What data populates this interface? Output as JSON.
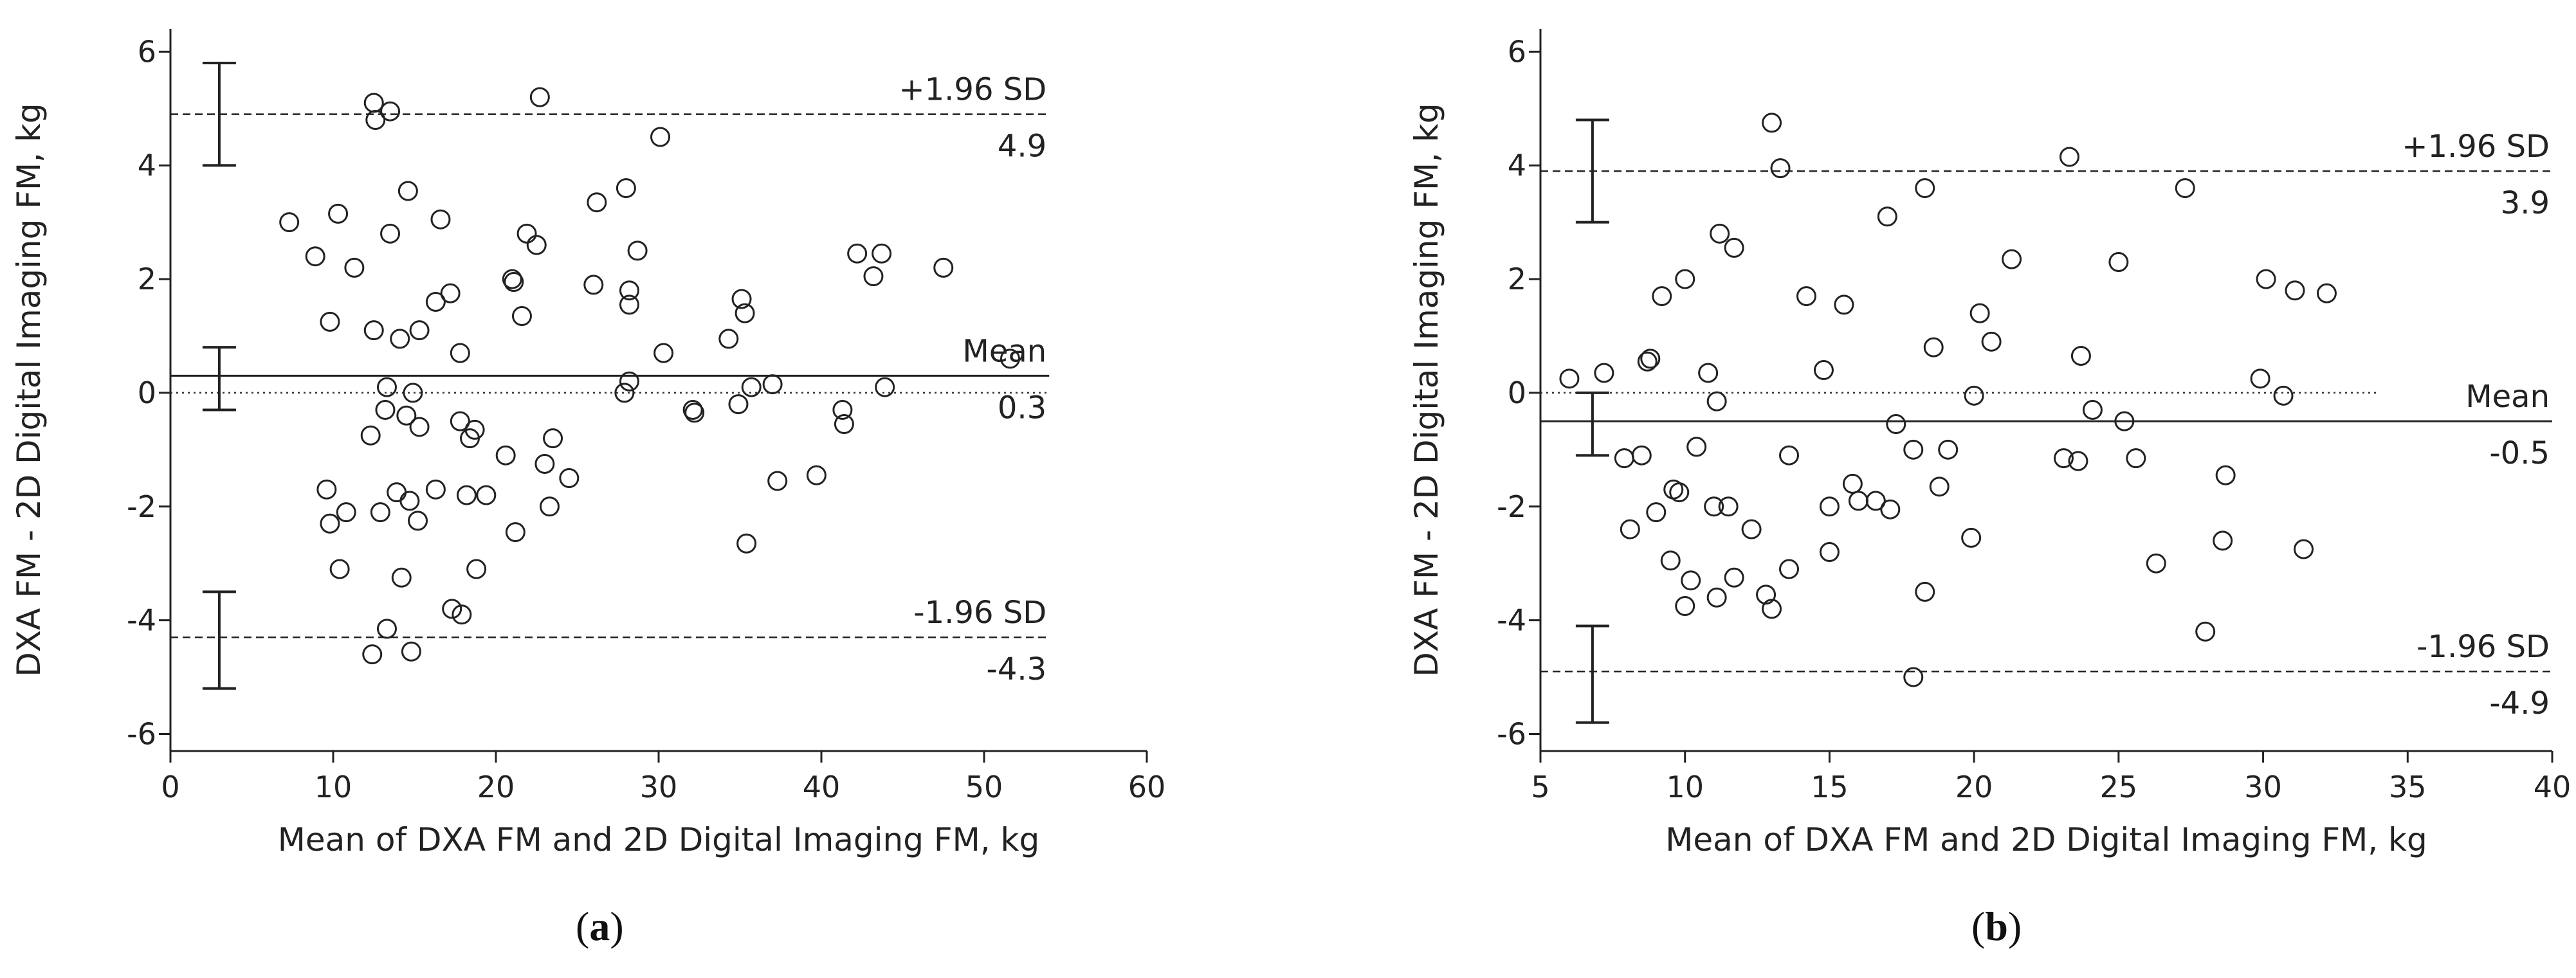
{
  "chart_data": [
    {
      "panel_label": "a",
      "type": "scatter",
      "chart_kind": "bland-altman",
      "title": "",
      "xlabel": "Mean of DXA FM and 2D Digital Imaging FM, kg",
      "ylabel": "DXA FM - 2D Digital Imaging FM, kg",
      "xlim": [
        0,
        60
      ],
      "ylim": [
        -6.3,
        6.4
      ],
      "xticks": [
        0,
        10,
        20,
        30,
        40,
        50,
        60
      ],
      "yticks": [
        -6,
        -4,
        -2,
        0,
        2,
        4,
        6
      ],
      "grid": false,
      "zero_line": 0,
      "mean": 0.3,
      "upper_loa": 4.9,
      "lower_loa": -4.3,
      "line_extent_x": [
        0,
        54
      ],
      "labels": {
        "upper": "+1.96 SD",
        "upper_value": "4.9",
        "mean": "Mean",
        "mean_value": "0.3",
        "lower": "-1.96 SD",
        "lower_value": "-4.3"
      },
      "error_bars": [
        {
          "x": 3,
          "low": 4.0,
          "high": 5.8
        },
        {
          "x": 3,
          "low": -0.3,
          "high": 0.8
        },
        {
          "x": 3,
          "low": -5.2,
          "high": -3.5
        }
      ],
      "points": [
        [
          7.3,
          3.0
        ],
        [
          8.9,
          2.4
        ],
        [
          9.8,
          1.25
        ],
        [
          9.6,
          -1.7
        ],
        [
          9.8,
          -2.3
        ],
        [
          10.3,
          3.15
        ],
        [
          10.4,
          -3.1
        ],
        [
          10.8,
          -2.1
        ],
        [
          11.3,
          2.2
        ],
        [
          12.3,
          -0.75
        ],
        [
          12.4,
          -4.6
        ],
        [
          12.5,
          1.1
        ],
        [
          12.5,
          5.1
        ],
        [
          12.6,
          4.8
        ],
        [
          12.9,
          -2.1
        ],
        [
          13.2,
          -0.3
        ],
        [
          13.3,
          -4.15
        ],
        [
          13.3,
          0.1
        ],
        [
          13.5,
          2.8
        ],
        [
          13.5,
          4.95
        ],
        [
          13.9,
          -1.75
        ],
        [
          14.1,
          0.95
        ],
        [
          14.2,
          -3.25
        ],
        [
          14.5,
          -0.4
        ],
        [
          14.6,
          3.55
        ],
        [
          14.7,
          -1.9
        ],
        [
          14.8,
          -4.55
        ],
        [
          14.9,
          0.0
        ],
        [
          15.2,
          -2.25
        ],
        [
          15.3,
          1.1
        ],
        [
          15.3,
          -0.6
        ],
        [
          16.3,
          1.6
        ],
        [
          16.3,
          -1.7
        ],
        [
          16.6,
          3.05
        ],
        [
          17.2,
          1.75
        ],
        [
          17.3,
          -3.8
        ],
        [
          17.8,
          0.7
        ],
        [
          17.8,
          -0.5
        ],
        [
          17.9,
          -3.9
        ],
        [
          18.2,
          -1.8
        ],
        [
          18.4,
          -0.8
        ],
        [
          18.7,
          -0.65
        ],
        [
          18.8,
          -3.1
        ],
        [
          19.4,
          -1.8
        ],
        [
          20.6,
          -1.1
        ],
        [
          21.0,
          2.0
        ],
        [
          21.1,
          1.95
        ],
        [
          21.2,
          -2.45
        ],
        [
          21.6,
          1.35
        ],
        [
          21.9,
          2.8
        ],
        [
          22.5,
          2.6
        ],
        [
          22.7,
          5.2
        ],
        [
          23.0,
          -1.25
        ],
        [
          23.3,
          -2.0
        ],
        [
          23.5,
          -0.8
        ],
        [
          24.5,
          -1.5
        ],
        [
          26.0,
          1.9
        ],
        [
          26.2,
          3.35
        ],
        [
          27.9,
          0.0
        ],
        [
          28.0,
          3.6
        ],
        [
          28.2,
          0.2
        ],
        [
          28.2,
          1.8
        ],
        [
          28.2,
          1.55
        ],
        [
          28.7,
          2.5
        ],
        [
          30.1,
          4.5
        ],
        [
          30.3,
          0.7
        ],
        [
          32.1,
          -0.3
        ],
        [
          32.2,
          -0.35
        ],
        [
          34.3,
          0.95
        ],
        [
          34.9,
          -0.2
        ],
        [
          35.1,
          1.65
        ],
        [
          35.3,
          1.4
        ],
        [
          35.4,
          -2.65
        ],
        [
          35.7,
          0.1
        ],
        [
          37.0,
          0.15
        ],
        [
          37.3,
          -1.55
        ],
        [
          39.7,
          -1.45
        ],
        [
          41.3,
          -0.3
        ],
        [
          41.4,
          -0.55
        ],
        [
          42.2,
          2.45
        ],
        [
          43.2,
          2.05
        ],
        [
          43.7,
          2.45
        ],
        [
          43.9,
          0.1
        ],
        [
          47.5,
          2.2
        ],
        [
          51.6,
          0.6
        ]
      ]
    },
    {
      "panel_label": "b",
      "type": "scatter",
      "chart_kind": "bland-altman",
      "title": "",
      "xlabel": "Mean of DXA FM and 2D Digital Imaging FM, kg",
      "ylabel": "DXA FM - 2D Digital Imaging FM, kg",
      "xlim": [
        5,
        40
      ],
      "ylim": [
        -6.3,
        6.4
      ],
      "xticks": [
        5,
        10,
        15,
        20,
        25,
        30,
        35,
        40
      ],
      "yticks": [
        -6,
        -4,
        -2,
        0,
        2,
        4,
        6
      ],
      "grid": false,
      "zero_line": 0,
      "mean": -0.5,
      "upper_loa": 3.9,
      "lower_loa": -4.9,
      "line_extent_x": [
        5,
        40
      ],
      "labels": {
        "upper": "+1.96 SD",
        "upper_value": "3.9",
        "mean": "Mean",
        "mean_value": "-0.5",
        "lower": "-1.96 SD",
        "lower_value": "-4.9"
      },
      "error_bars": [
        {
          "x": 6.8,
          "low": 3.0,
          "high": 4.8
        },
        {
          "x": 6.8,
          "low": -1.1,
          "high": 0.0
        },
        {
          "x": 6.8,
          "low": -5.8,
          "high": -4.1
        }
      ],
      "points": [
        [
          6.0,
          0.25
        ],
        [
          7.2,
          0.35
        ],
        [
          7.9,
          -1.15
        ],
        [
          8.1,
          -2.4
        ],
        [
          8.5,
          -1.1
        ],
        [
          8.7,
          0.55
        ],
        [
          8.8,
          0.6
        ],
        [
          9.0,
          -2.1
        ],
        [
          9.2,
          1.7
        ],
        [
          9.5,
          -2.95
        ],
        [
          9.6,
          -1.7
        ],
        [
          9.8,
          -1.75
        ],
        [
          10.0,
          2.0
        ],
        [
          10.0,
          -3.75
        ],
        [
          10.2,
          -3.3
        ],
        [
          10.4,
          -0.95
        ],
        [
          10.8,
          0.35
        ],
        [
          11.0,
          -2.0
        ],
        [
          11.1,
          -3.6
        ],
        [
          11.1,
          -0.15
        ],
        [
          11.2,
          2.8
        ],
        [
          11.5,
          -2.0
        ],
        [
          11.7,
          2.55
        ],
        [
          11.7,
          -3.25
        ],
        [
          12.3,
          -2.4
        ],
        [
          12.8,
          -3.55
        ],
        [
          13.0,
          4.75
        ],
        [
          13.0,
          -3.8
        ],
        [
          13.3,
          3.95
        ],
        [
          13.6,
          -1.1
        ],
        [
          13.6,
          -3.1
        ],
        [
          14.2,
          1.7
        ],
        [
          14.8,
          0.4
        ],
        [
          15.0,
          -2.0
        ],
        [
          15.0,
          -2.8
        ],
        [
          15.5,
          1.55
        ],
        [
          15.8,
          -1.6
        ],
        [
          16.0,
          -1.9
        ],
        [
          16.6,
          -1.9
        ],
        [
          17.0,
          3.1
        ],
        [
          17.1,
          -2.05
        ],
        [
          17.3,
          -0.55
        ],
        [
          17.9,
          -1.0
        ],
        [
          17.9,
          -5.0
        ],
        [
          18.3,
          -3.5
        ],
        [
          18.3,
          3.6
        ],
        [
          18.6,
          0.8
        ],
        [
          18.8,
          -1.65
        ],
        [
          19.1,
          -1.0
        ],
        [
          19.9,
          -2.55
        ],
        [
          20.0,
          -0.05
        ],
        [
          20.2,
          1.4
        ],
        [
          20.6,
          0.9
        ],
        [
          21.3,
          2.35
        ],
        [
          23.1,
          -1.15
        ],
        [
          23.3,
          4.15
        ],
        [
          23.6,
          -1.2
        ],
        [
          23.7,
          0.65
        ],
        [
          24.1,
          -0.3
        ],
        [
          25.0,
          2.3
        ],
        [
          25.2,
          -0.5
        ],
        [
          25.6,
          -1.15
        ],
        [
          26.3,
          -3.0
        ],
        [
          27.3,
          3.6
        ],
        [
          28.0,
          -4.2
        ],
        [
          28.6,
          -2.6
        ],
        [
          28.7,
          -1.45
        ],
        [
          29.9,
          0.25
        ],
        [
          30.1,
          2.0
        ],
        [
          30.7,
          -0.05
        ],
        [
          31.1,
          1.8
        ],
        [
          31.4,
          -2.75
        ],
        [
          32.2,
          1.75
        ]
      ]
    }
  ]
}
